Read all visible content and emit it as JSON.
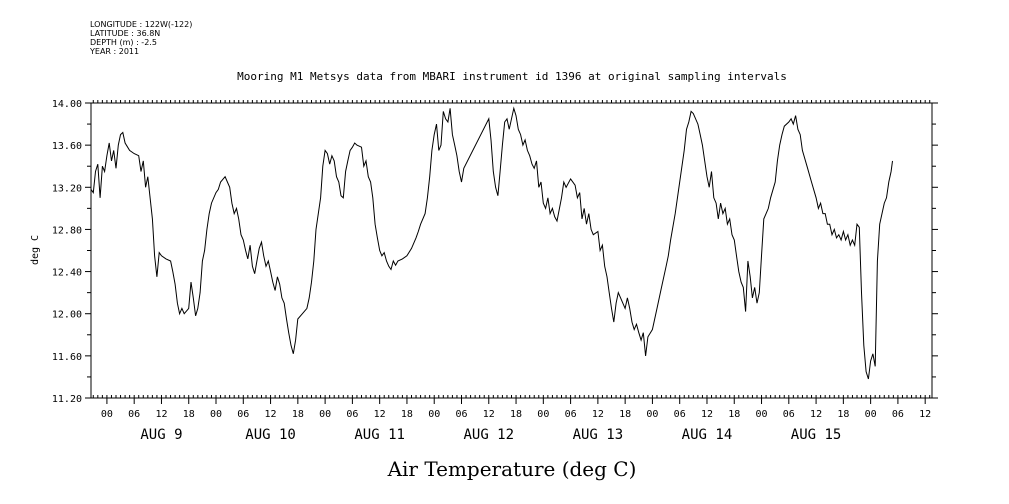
{
  "header": {
    "longitude": "LONGITUDE : 122W(-122)",
    "latitude": "LATITUDE : 36.8N",
    "depth": "DEPTH (m) : -2.5",
    "year": "YEAR : 2011"
  },
  "chart_data": {
    "type": "line",
    "title": "Mooring M1 Metsys data from MBARI instrument id 1396 at original sampling intervals",
    "xlabel": "Air Temperature (deg C)",
    "ylabel": "deg C",
    "ylim": [
      11.2,
      14.0
    ],
    "xlim_hours": [
      -3.5,
      181.5
    ],
    "y_ticks": [
      "14.00",
      "13.60",
      "13.20",
      "12.80",
      "12.40",
      "12.00",
      "11.60",
      "11.20"
    ],
    "hour_ticks": [
      "00",
      "06",
      "12",
      "18"
    ],
    "day_labels": [
      "AUG  9",
      "AUG 10",
      "AUG 11",
      "AUG 12",
      "AUG 13",
      "AUG 14",
      "AUG 15"
    ],
    "x_unit": "hours since 2011-08-09 00:00",
    "series": [
      {
        "name": "Air Temperature",
        "points": [
          [
            -3.5,
            13.18
          ],
          [
            -3,
            13.15
          ],
          [
            -2.5,
            13.35
          ],
          [
            -2,
            13.42
          ],
          [
            -1.5,
            13.1
          ],
          [
            -1,
            13.4
          ],
          [
            -0.5,
            13.35
          ],
          [
            0,
            13.5
          ],
          [
            0.5,
            13.62
          ],
          [
            1,
            13.45
          ],
          [
            1.5,
            13.55
          ],
          [
            2,
            13.38
          ],
          [
            2.5,
            13.6
          ],
          [
            3,
            13.7
          ],
          [
            3.5,
            13.72
          ],
          [
            4,
            13.62
          ],
          [
            5,
            13.55
          ],
          [
            6,
            13.52
          ],
          [
            7,
            13.5
          ],
          [
            7.5,
            13.35
          ],
          [
            8,
            13.45
          ],
          [
            8.5,
            13.2
          ],
          [
            9,
            13.3
          ],
          [
            9.5,
            13.1
          ],
          [
            10,
            12.9
          ],
          [
            10.5,
            12.55
          ],
          [
            11,
            12.35
          ],
          [
            11.5,
            12.58
          ],
          [
            12,
            12.55
          ],
          [
            13,
            12.52
          ],
          [
            14,
            12.5
          ],
          [
            14.5,
            12.4
          ],
          [
            15,
            12.28
          ],
          [
            15.5,
            12.1
          ],
          [
            16,
            12.0
          ],
          [
            16.5,
            12.05
          ],
          [
            17,
            12.0
          ],
          [
            18,
            12.05
          ],
          [
            18.5,
            12.3
          ],
          [
            19,
            12.15
          ],
          [
            19.5,
            11.98
          ],
          [
            20,
            12.05
          ],
          [
            20.5,
            12.2
          ],
          [
            21,
            12.5
          ],
          [
            21.5,
            12.6
          ],
          [
            22,
            12.8
          ],
          [
            22.5,
            12.95
          ],
          [
            23,
            13.05
          ],
          [
            24,
            13.15
          ],
          [
            24.5,
            13.18
          ],
          [
            25,
            13.25
          ],
          [
            26,
            13.3
          ],
          [
            26.5,
            13.25
          ],
          [
            27,
            13.2
          ],
          [
            27.5,
            13.05
          ],
          [
            28,
            12.95
          ],
          [
            28.5,
            13.0
          ],
          [
            29,
            12.9
          ],
          [
            29.5,
            12.75
          ],
          [
            30,
            12.7
          ],
          [
            30.5,
            12.6
          ],
          [
            31,
            12.52
          ],
          [
            31.5,
            12.65
          ],
          [
            32,
            12.45
          ],
          [
            32.5,
            12.38
          ],
          [
            33,
            12.5
          ],
          [
            33.5,
            12.62
          ],
          [
            34,
            12.68
          ],
          [
            34.5,
            12.55
          ],
          [
            35,
            12.45
          ],
          [
            35.5,
            12.5
          ],
          [
            36,
            12.4
          ],
          [
            36.5,
            12.3
          ],
          [
            37,
            12.22
          ],
          [
            37.5,
            12.35
          ],
          [
            38,
            12.28
          ],
          [
            38.5,
            12.15
          ],
          [
            39,
            12.1
          ],
          [
            39.5,
            11.95
          ],
          [
            40,
            11.82
          ],
          [
            40.5,
            11.7
          ],
          [
            41,
            11.62
          ],
          [
            41.5,
            11.75
          ],
          [
            42,
            11.95
          ],
          [
            43,
            12.0
          ],
          [
            44,
            12.05
          ],
          [
            44.5,
            12.15
          ],
          [
            45,
            12.3
          ],
          [
            45.5,
            12.5
          ],
          [
            46,
            12.8
          ],
          [
            47,
            13.1
          ],
          [
            47.5,
            13.4
          ],
          [
            48,
            13.55
          ],
          [
            48.5,
            13.52
          ],
          [
            49,
            13.42
          ],
          [
            49.5,
            13.5
          ],
          [
            50,
            13.45
          ],
          [
            50.5,
            13.3
          ],
          [
            51,
            13.25
          ],
          [
            51.5,
            13.12
          ],
          [
            52,
            13.1
          ],
          [
            52.5,
            13.35
          ],
          [
            53,
            13.45
          ],
          [
            53.5,
            13.55
          ],
          [
            54,
            13.58
          ],
          [
            54.5,
            13.62
          ],
          [
            55,
            13.6
          ],
          [
            56,
            13.58
          ],
          [
            56.5,
            13.4
          ],
          [
            57,
            13.45
          ],
          [
            57.5,
            13.3
          ],
          [
            58,
            13.25
          ],
          [
            58.5,
            13.1
          ],
          [
            59,
            12.85
          ],
          [
            59.5,
            12.72
          ],
          [
            60,
            12.6
          ],
          [
            60.5,
            12.55
          ],
          [
            61,
            12.58
          ],
          [
            61.5,
            12.5
          ],
          [
            62,
            12.45
          ],
          [
            62.5,
            12.42
          ],
          [
            63,
            12.5
          ],
          [
            63.5,
            12.46
          ],
          [
            64,
            12.5
          ],
          [
            65,
            12.52
          ],
          [
            66,
            12.55
          ],
          [
            67,
            12.62
          ],
          [
            68,
            12.72
          ],
          [
            68.5,
            12.78
          ],
          [
            69,
            12.85
          ],
          [
            70,
            12.95
          ],
          [
            70.5,
            13.1
          ],
          [
            71,
            13.3
          ],
          [
            71.5,
            13.55
          ],
          [
            72,
            13.7
          ],
          [
            72.5,
            13.8
          ],
          [
            73,
            13.55
          ],
          [
            73.5,
            13.6
          ],
          [
            74,
            13.92
          ],
          [
            74.5,
            13.85
          ],
          [
            75,
            13.82
          ],
          [
            75.5,
            13.95
          ],
          [
            76,
            13.7
          ],
          [
            76.5,
            13.6
          ],
          [
            77,
            13.5
          ],
          [
            77.5,
            13.35
          ],
          [
            78,
            13.25
          ],
          [
            78.5,
            13.38
          ],
          [
            84,
            13.85
          ],
          [
            84.5,
            13.65
          ],
          [
            85,
            13.35
          ],
          [
            85.5,
            13.2
          ],
          [
            86,
            13.12
          ],
          [
            86.5,
            13.35
          ],
          [
            87,
            13.6
          ],
          [
            87.5,
            13.82
          ],
          [
            88,
            13.85
          ],
          [
            88.5,
            13.75
          ],
          [
            89,
            13.85
          ],
          [
            89.5,
            13.95
          ],
          [
            90,
            13.88
          ],
          [
            90.5,
            13.75
          ],
          [
            91,
            13.7
          ],
          [
            91.5,
            13.6
          ],
          [
            92,
            13.65
          ],
          [
            92.5,
            13.55
          ],
          [
            93,
            13.5
          ],
          [
            93.5,
            13.42
          ],
          [
            94,
            13.38
          ],
          [
            94.5,
            13.45
          ],
          [
            95,
            13.2
          ],
          [
            95.5,
            13.25
          ],
          [
            96,
            13.05
          ],
          [
            96.5,
            13.0
          ],
          [
            97,
            13.1
          ],
          [
            97.5,
            12.95
          ],
          [
            98,
            13.0
          ],
          [
            98.5,
            12.92
          ],
          [
            99,
            12.88
          ],
          [
            100,
            13.1
          ],
          [
            100.5,
            13.25
          ],
          [
            101,
            13.2
          ],
          [
            102,
            13.28
          ],
          [
            103,
            13.22
          ],
          [
            103.5,
            13.1
          ],
          [
            104,
            13.15
          ],
          [
            104.5,
            12.9
          ],
          [
            105,
            13.0
          ],
          [
            105.5,
            12.85
          ],
          [
            106,
            12.95
          ],
          [
            106.5,
            12.8
          ],
          [
            107,
            12.75
          ],
          [
            108,
            12.78
          ],
          [
            108.5,
            12.6
          ],
          [
            109,
            12.65
          ],
          [
            109.5,
            12.45
          ],
          [
            110,
            12.35
          ],
          [
            110.5,
            12.2
          ],
          [
            111,
            12.05
          ],
          [
            111.5,
            11.92
          ],
          [
            112,
            12.1
          ],
          [
            112.5,
            12.2
          ],
          [
            113,
            12.15
          ],
          [
            114,
            12.05
          ],
          [
            114.5,
            12.15
          ],
          [
            115,
            12.05
          ],
          [
            115.5,
            11.92
          ],
          [
            116,
            11.85
          ],
          [
            116.5,
            11.9
          ],
          [
            117,
            11.82
          ],
          [
            117.5,
            11.75
          ],
          [
            118,
            11.82
          ],
          [
            118.5,
            11.6
          ],
          [
            119,
            11.78
          ],
          [
            120,
            11.85
          ],
          [
            121,
            12.05
          ],
          [
            122,
            12.25
          ],
          [
            123,
            12.45
          ],
          [
            123.5,
            12.55
          ],
          [
            124,
            12.7
          ],
          [
            125,
            12.95
          ],
          [
            126,
            13.25
          ],
          [
            127,
            13.55
          ],
          [
            127.5,
            13.75
          ],
          [
            128,
            13.82
          ],
          [
            128.5,
            13.92
          ],
          [
            129,
            13.9
          ],
          [
            130,
            13.8
          ],
          [
            130.5,
            13.7
          ],
          [
            131,
            13.6
          ],
          [
            131.5,
            13.45
          ],
          [
            132,
            13.3
          ],
          [
            132.5,
            13.2
          ],
          [
            133,
            13.35
          ],
          [
            133.5,
            13.1
          ],
          [
            134,
            13.05
          ],
          [
            134.5,
            12.9
          ],
          [
            135,
            13.05
          ],
          [
            135.5,
            12.95
          ],
          [
            136,
            13.0
          ],
          [
            136.5,
            12.85
          ],
          [
            137,
            12.9
          ],
          [
            137.5,
            12.75
          ],
          [
            138,
            12.7
          ],
          [
            138.5,
            12.55
          ],
          [
            139,
            12.4
          ],
          [
            139.5,
            12.3
          ],
          [
            140,
            12.25
          ],
          [
            140.5,
            12.02
          ],
          [
            141,
            12.5
          ],
          [
            141.5,
            12.35
          ],
          [
            142,
            12.15
          ],
          [
            142.5,
            12.25
          ],
          [
            143,
            12.1
          ],
          [
            143.5,
            12.2
          ],
          [
            144,
            12.55
          ],
          [
            144.5,
            12.9
          ],
          [
            145,
            12.95
          ],
          [
            145.5,
            13.0
          ],
          [
            146,
            13.1
          ],
          [
            147,
            13.25
          ],
          [
            147.5,
            13.45
          ],
          [
            148,
            13.6
          ],
          [
            148.5,
            13.7
          ],
          [
            149,
            13.78
          ],
          [
            150,
            13.82
          ],
          [
            150.5,
            13.85
          ],
          [
            151,
            13.8
          ],
          [
            151.5,
            13.88
          ],
          [
            152,
            13.75
          ],
          [
            152.5,
            13.7
          ],
          [
            153,
            13.55
          ],
          [
            154,
            13.4
          ],
          [
            155,
            13.25
          ],
          [
            156,
            13.1
          ],
          [
            156.5,
            13.0
          ],
          [
            157,
            13.05
          ],
          [
            157.5,
            12.95
          ],
          [
            158,
            12.95
          ],
          [
            158.5,
            12.85
          ],
          [
            159,
            12.85
          ],
          [
            159.5,
            12.75
          ],
          [
            160,
            12.8
          ],
          [
            160.5,
            12.72
          ],
          [
            161,
            12.75
          ],
          [
            161.5,
            12.7
          ],
          [
            162,
            12.78
          ],
          [
            162.5,
            12.7
          ],
          [
            163,
            12.75
          ],
          [
            163.5,
            12.65
          ],
          [
            164,
            12.7
          ],
          [
            164.5,
            12.65
          ],
          [
            165,
            12.85
          ],
          [
            165.5,
            12.82
          ],
          [
            166,
            12.2
          ],
          [
            166.5,
            11.7
          ],
          [
            167,
            11.45
          ],
          [
            167.5,
            11.38
          ],
          [
            168,
            11.55
          ],
          [
            168.5,
            11.62
          ],
          [
            169,
            11.5
          ],
          [
            169.5,
            12.5
          ],
          [
            170,
            12.85
          ],
          [
            170.5,
            12.95
          ],
          [
            171,
            13.05
          ],
          [
            171.5,
            13.1
          ],
          [
            172,
            13.25
          ],
          [
            172.5,
            13.35
          ],
          [
            172.8,
            13.45
          ]
        ]
      }
    ]
  }
}
